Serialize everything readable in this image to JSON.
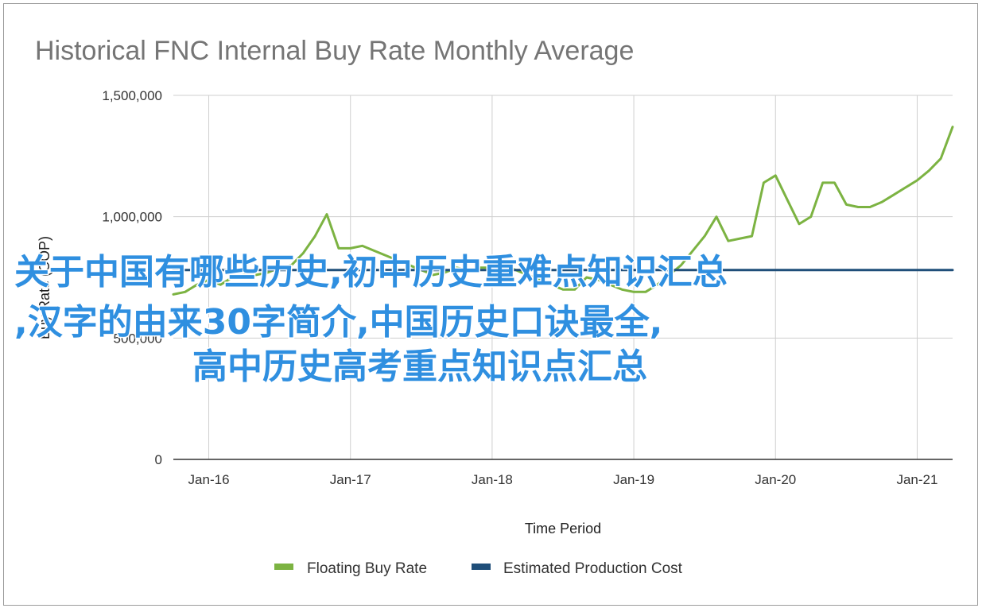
{
  "chart_data": {
    "type": "line",
    "title": "Historical FNC Internal Buy Rate Monthly Average",
    "xlabel": "Time Period",
    "ylabel": "Buy Rate (COP)",
    "x_ticks": [
      "Jan-16",
      "Jan-17",
      "Jan-18",
      "Jan-19",
      "Jan-20",
      "Jan-21"
    ],
    "y_ticks": [
      "0",
      "500,000",
      "1,000,000",
      "1,500,000"
    ],
    "xlim": [
      "2015-10",
      "2021-04"
    ],
    "ylim": [
      0,
      1500000
    ],
    "grid": true,
    "legend_position": "bottom",
    "series": [
      {
        "name": "Floating Buy Rate",
        "color": "#7cb342",
        "x": [
          "2015-10",
          "2015-11",
          "2015-12",
          "2016-01",
          "2016-02",
          "2016-03",
          "2016-04",
          "2016-05",
          "2016-06",
          "2016-07",
          "2016-08",
          "2016-09",
          "2016-10",
          "2016-11",
          "2016-12",
          "2017-01",
          "2017-02",
          "2017-03",
          "2017-04",
          "2017-05",
          "2017-06",
          "2017-07",
          "2017-08",
          "2017-09",
          "2017-10",
          "2017-11",
          "2017-12",
          "2018-01",
          "2018-02",
          "2018-03",
          "2018-04",
          "2018-05",
          "2018-06",
          "2018-07",
          "2018-08",
          "2018-09",
          "2018-10",
          "2018-11",
          "2018-12",
          "2019-01",
          "2019-02",
          "2019-03",
          "2019-04",
          "2019-05",
          "2019-06",
          "2019-07",
          "2019-08",
          "2019-09",
          "2019-10",
          "2019-11",
          "2019-12",
          "2020-01",
          "2020-02",
          "2020-03",
          "2020-04",
          "2020-05",
          "2020-06",
          "2020-07",
          "2020-08",
          "2020-09",
          "2020-10",
          "2020-11",
          "2020-12",
          "2021-01",
          "2021-02",
          "2021-03",
          "2021-04"
        ],
        "values": [
          680000,
          690000,
          720000,
          740000,
          720000,
          750000,
          760000,
          760000,
          770000,
          790000,
          800000,
          850000,
          920000,
          1010000,
          870000,
          870000,
          880000,
          860000,
          840000,
          820000,
          800000,
          780000,
          760000,
          770000,
          790000,
          780000,
          790000,
          790000,
          800000,
          780000,
          760000,
          740000,
          720000,
          700000,
          700000,
          750000,
          740000,
          720000,
          700000,
          690000,
          690000,
          720000,
          760000,
          800000,
          860000,
          920000,
          1000000,
          900000,
          910000,
          920000,
          1140000,
          1170000,
          1070000,
          970000,
          1000000,
          1140000,
          1140000,
          1050000,
          1040000,
          1040000,
          1060000,
          1090000,
          1120000,
          1150000,
          1190000,
          1240000,
          1370000
        ]
      },
      {
        "name": "Estimated Production Cost",
        "color": "#1f4e79",
        "x": [
          "2015-10",
          "2021-04"
        ],
        "values": [
          780000,
          780000
        ]
      }
    ]
  },
  "overlay": {
    "line1": "关于中国有哪些历史,初中历史重难点知识汇总",
    "line2": ",汉字的由来30字简介,中国历史口诀最全,",
    "line3": "高中历史高考重点知识点汇总"
  }
}
